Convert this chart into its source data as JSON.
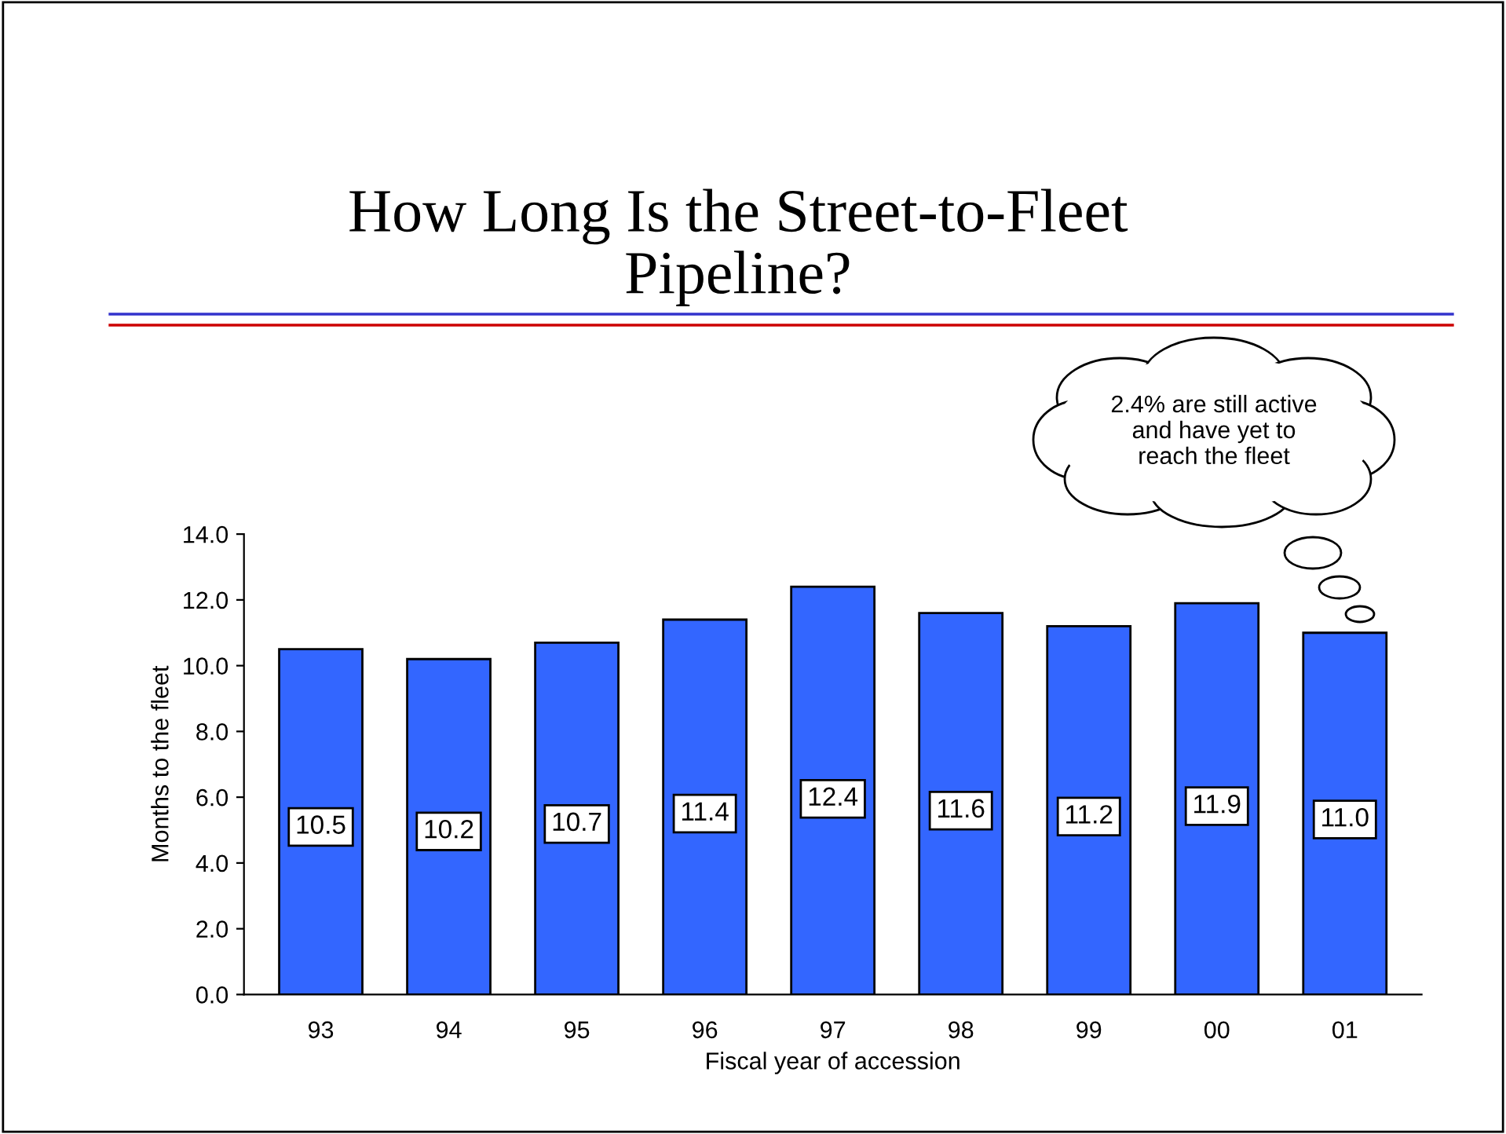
{
  "chart_data": {
    "type": "bar",
    "title": "How Long Is the Street-to-Fleet\nPipeline?",
    "xlabel": "Fiscal year of accession",
    "ylabel": "Months to the fleet",
    "categories": [
      "93",
      "94",
      "95",
      "96",
      "97",
      "98",
      "99",
      "00",
      "01"
    ],
    "values": [
      10.5,
      10.2,
      10.7,
      11.4,
      12.4,
      11.6,
      11.2,
      11.9,
      11.0
    ],
    "color": "#3366ff",
    "ylim": [
      0,
      14
    ],
    "yticks": [
      {
        "value": 0,
        "label": "0.0"
      },
      {
        "value": 2,
        "label": "2.0"
      },
      {
        "value": 4,
        "label": "4.0"
      },
      {
        "value": 6,
        "label": "6.0"
      },
      {
        "value": 8,
        "label": "8.0"
      },
      {
        "value": 10,
        "label": "10.0"
      },
      {
        "value": 12,
        "label": "12.0"
      },
      {
        "value": 14,
        "label": "14.0"
      }
    ],
    "value_labels": [
      "10.5",
      "10.2",
      "10.7",
      "11.4",
      "12.4",
      "11.6",
      "11.2",
      "11.9",
      "11.0"
    ],
    "grid": false,
    "legend": false,
    "annotations": [
      "2.4% are still active\nand have yet to\nreach the fleet"
    ]
  }
}
